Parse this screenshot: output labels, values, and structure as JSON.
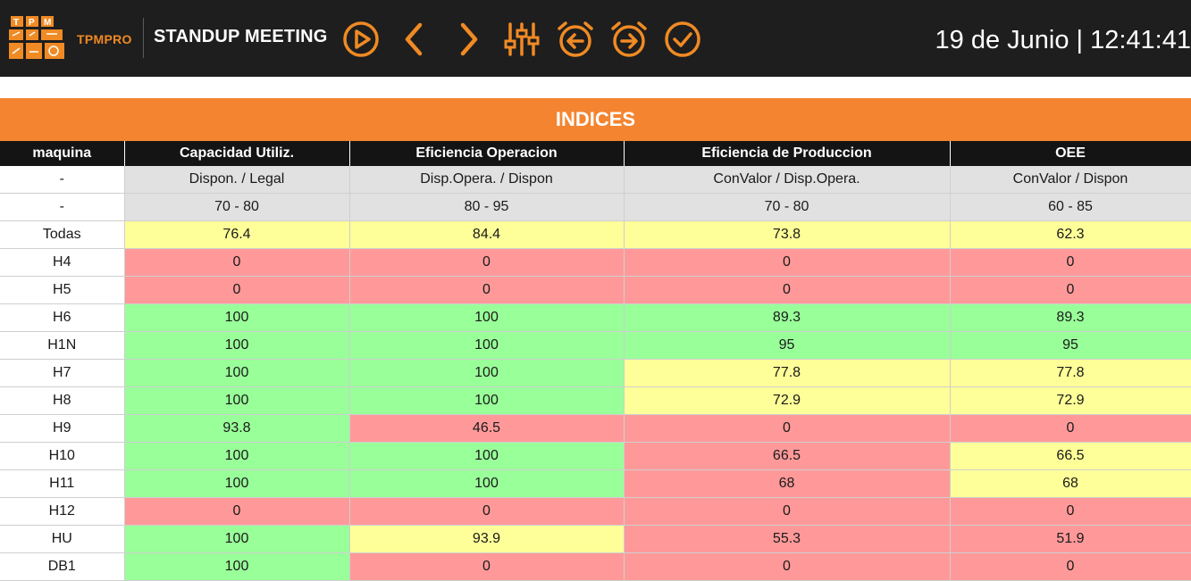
{
  "header": {
    "logo_text": "TPM",
    "brand": "TPMPRO",
    "title": "STANDUP MEETING",
    "clock": "19 de Junio | 12:41:41",
    "accent_color": "#f08a24",
    "buttons": [
      {
        "name": "play-button",
        "icon": "play-circle-icon"
      },
      {
        "name": "previous-button",
        "icon": "chevron-left-icon"
      },
      {
        "name": "next-button",
        "icon": "chevron-right-icon"
      },
      {
        "name": "filters-button",
        "icon": "sliders-icon"
      },
      {
        "name": "alarm-back-button",
        "icon": "alarm-arrow-left-icon"
      },
      {
        "name": "alarm-forward-button",
        "icon": "alarm-arrow-right-icon"
      },
      {
        "name": "confirm-button",
        "icon": "check-circle-icon"
      }
    ]
  },
  "panel": {
    "title": "INDICES"
  },
  "table": {
    "columns": [
      "maquina",
      "Capacidad Utiliz.",
      "Eficiencia Operacion",
      "Eficiencia de Produccion",
      "OEE"
    ],
    "formula_row": [
      "-",
      "Dispon. / Legal",
      "Disp.Opera. / Dispon",
      "ConValor / Disp.Opera.",
      "ConValor / Dispon"
    ],
    "range_row": [
      "-",
      "70 - 80",
      "80 - 95",
      "70 - 80",
      "60 - 85"
    ],
    "rows": [
      {
        "machine": "Todas",
        "cells": [
          {
            "v": "76.4",
            "s": "yellow"
          },
          {
            "v": "84.4",
            "s": "yellow"
          },
          {
            "v": "73.8",
            "s": "yellow"
          },
          {
            "v": "62.3",
            "s": "yellow"
          }
        ]
      },
      {
        "machine": "H4",
        "cells": [
          {
            "v": "0",
            "s": "red"
          },
          {
            "v": "0",
            "s": "red"
          },
          {
            "v": "0",
            "s": "red"
          },
          {
            "v": "0",
            "s": "red"
          }
        ]
      },
      {
        "machine": "H5",
        "cells": [
          {
            "v": "0",
            "s": "red"
          },
          {
            "v": "0",
            "s": "red"
          },
          {
            "v": "0",
            "s": "red"
          },
          {
            "v": "0",
            "s": "red"
          }
        ]
      },
      {
        "machine": "H6",
        "cells": [
          {
            "v": "100",
            "s": "green"
          },
          {
            "v": "100",
            "s": "green"
          },
          {
            "v": "89.3",
            "s": "green"
          },
          {
            "v": "89.3",
            "s": "green"
          }
        ]
      },
      {
        "machine": "H1N",
        "cells": [
          {
            "v": "100",
            "s": "green"
          },
          {
            "v": "100",
            "s": "green"
          },
          {
            "v": "95",
            "s": "green"
          },
          {
            "v": "95",
            "s": "green"
          }
        ]
      },
      {
        "machine": "H7",
        "cells": [
          {
            "v": "100",
            "s": "green"
          },
          {
            "v": "100",
            "s": "green"
          },
          {
            "v": "77.8",
            "s": "yellow"
          },
          {
            "v": "77.8",
            "s": "yellow"
          }
        ]
      },
      {
        "machine": "H8",
        "cells": [
          {
            "v": "100",
            "s": "green"
          },
          {
            "v": "100",
            "s": "green"
          },
          {
            "v": "72.9",
            "s": "yellow"
          },
          {
            "v": "72.9",
            "s": "yellow"
          }
        ]
      },
      {
        "machine": "H9",
        "cells": [
          {
            "v": "93.8",
            "s": "green"
          },
          {
            "v": "46.5",
            "s": "red"
          },
          {
            "v": "0",
            "s": "red"
          },
          {
            "v": "0",
            "s": "red"
          }
        ]
      },
      {
        "machine": "H10",
        "cells": [
          {
            "v": "100",
            "s": "green"
          },
          {
            "v": "100",
            "s": "green"
          },
          {
            "v": "66.5",
            "s": "red"
          },
          {
            "v": "66.5",
            "s": "yellow"
          }
        ]
      },
      {
        "machine": "H11",
        "cells": [
          {
            "v": "100",
            "s": "green"
          },
          {
            "v": "100",
            "s": "green"
          },
          {
            "v": "68",
            "s": "red"
          },
          {
            "v": "68",
            "s": "yellow"
          }
        ]
      },
      {
        "machine": "H12",
        "cells": [
          {
            "v": "0",
            "s": "red"
          },
          {
            "v": "0",
            "s": "red"
          },
          {
            "v": "0",
            "s": "red"
          },
          {
            "v": "0",
            "s": "red"
          }
        ]
      },
      {
        "machine": "HU",
        "cells": [
          {
            "v": "100",
            "s": "green"
          },
          {
            "v": "93.9",
            "s": "yellow"
          },
          {
            "v": "55.3",
            "s": "red"
          },
          {
            "v": "51.9",
            "s": "red"
          }
        ]
      },
      {
        "machine": "DB1",
        "cells": [
          {
            "v": "100",
            "s": "green"
          },
          {
            "v": "0",
            "s": "red"
          },
          {
            "v": "0",
            "s": "red"
          },
          {
            "v": "0",
            "s": "red"
          }
        ]
      }
    ]
  }
}
